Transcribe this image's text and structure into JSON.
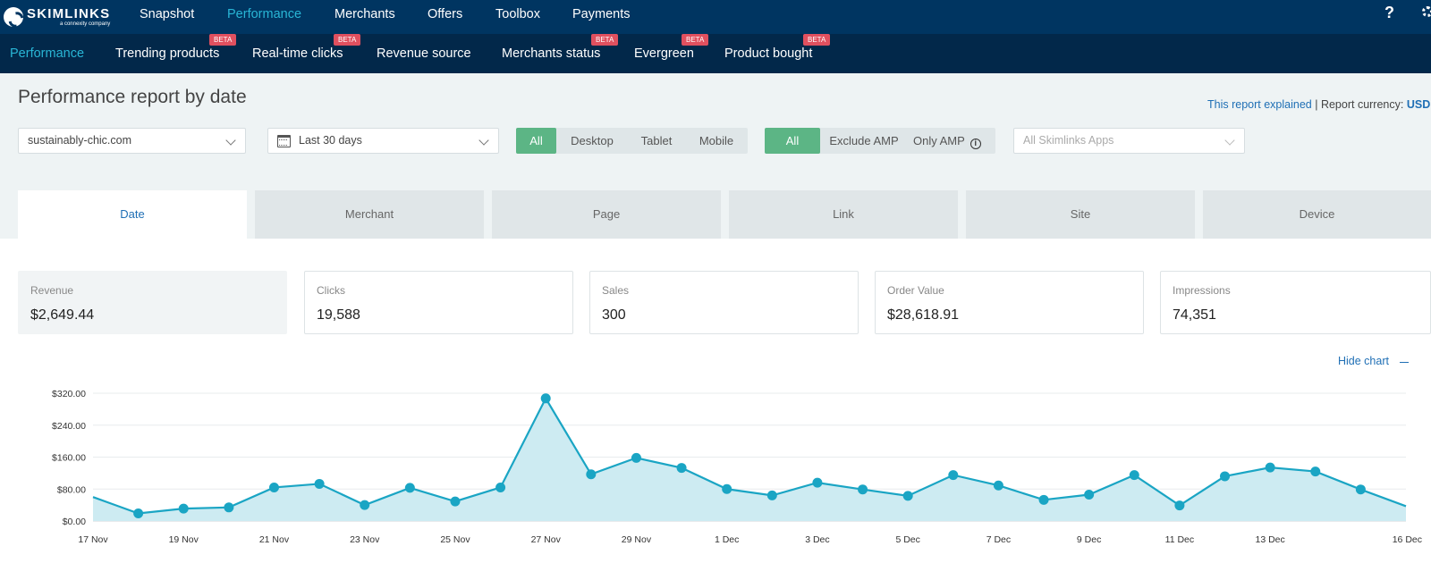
{
  "brand": {
    "name": "SKIMLINKS",
    "tagline": "a connexity company"
  },
  "topnav": {
    "items": [
      "Snapshot",
      "Performance",
      "Merchants",
      "Offers",
      "Toolbox",
      "Payments"
    ],
    "active": "Performance",
    "help": "?"
  },
  "subnav": {
    "items": [
      {
        "label": "Performance",
        "beta": false
      },
      {
        "label": "Trending products",
        "beta": true
      },
      {
        "label": "Real-time clicks",
        "beta": true
      },
      {
        "label": "Revenue source",
        "beta": false
      },
      {
        "label": "Merchants status",
        "beta": true
      },
      {
        "label": "Evergreen",
        "beta": true
      },
      {
        "label": "Product bought",
        "beta": true
      }
    ],
    "beta_label": "BETA"
  },
  "page": {
    "title": "Performance report by date",
    "report_explained": "This report explained",
    "separator": "|",
    "currency_label": "Report currency:",
    "currency": "USD"
  },
  "filters": {
    "site": "sustainably-chic.com",
    "date_range": "Last 30 days",
    "device": {
      "options": [
        "All",
        "Desktop",
        "Tablet",
        "Mobile"
      ],
      "selected": "All"
    },
    "amp": {
      "options": [
        "All",
        "Exclude AMP",
        "Only AMP"
      ],
      "selected": "All"
    },
    "apps_placeholder": "All Skimlinks Apps"
  },
  "tabs": {
    "items": [
      "Date",
      "Merchant",
      "Page",
      "Link",
      "Site",
      "Device"
    ],
    "active": "Date"
  },
  "metrics": [
    {
      "label": "Revenue",
      "value": "$2,649.44"
    },
    {
      "label": "Clicks",
      "value": "19,588"
    },
    {
      "label": "Sales",
      "value": "300"
    },
    {
      "label": "Order Value",
      "value": "$28,618.91"
    },
    {
      "label": "Impressions",
      "value": "74,351"
    }
  ],
  "hide_chart": "Hide chart",
  "colors": {
    "topnav": "#003561",
    "subnav": "#02284a",
    "accent": "#29b6d6",
    "green": "#5cb585",
    "beta": "#e0505f",
    "series": "#1aa5c4"
  },
  "chart_data": {
    "type": "area",
    "title": "",
    "xlabel": "",
    "ylabel": "",
    "ylim": [
      0,
      320
    ],
    "yticks": [
      "$0.00",
      "$80.00",
      "$160.00",
      "$240.00",
      "$320.00"
    ],
    "ytick_values": [
      0,
      80,
      160,
      240,
      320
    ],
    "xticks": [
      "17 Nov",
      "19 Nov",
      "21 Nov",
      "23 Nov",
      "25 Nov",
      "27 Nov",
      "29 Nov",
      "1 Dec",
      "3 Dec",
      "5 Dec",
      "7 Dec",
      "9 Dec",
      "11 Dec",
      "13 Dec",
      "16 Dec"
    ],
    "x": [
      "17 Nov",
      "18 Nov",
      "19 Nov",
      "20 Nov",
      "21 Nov",
      "22 Nov",
      "23 Nov",
      "24 Nov",
      "25 Nov",
      "26 Nov",
      "27 Nov",
      "28 Nov",
      "29 Nov",
      "30 Nov",
      "1 Dec",
      "2 Dec",
      "3 Dec",
      "4 Dec",
      "5 Dec",
      "6 Dec",
      "7 Dec",
      "8 Dec",
      "9 Dec",
      "10 Dec",
      "11 Dec",
      "12 Dec",
      "13 Dec",
      "14 Dec",
      "15 Dec",
      "16 Dec"
    ],
    "series": [
      {
        "values": [
          60,
          19,
          31,
          34,
          84,
          93,
          40,
          83,
          49,
          84,
          307,
          117,
          158,
          133,
          80,
          64,
          96,
          79,
          63,
          115,
          89,
          53,
          66,
          115,
          39,
          112,
          134,
          124,
          79,
          37
        ]
      }
    ],
    "grid": true,
    "legend": "none"
  }
}
